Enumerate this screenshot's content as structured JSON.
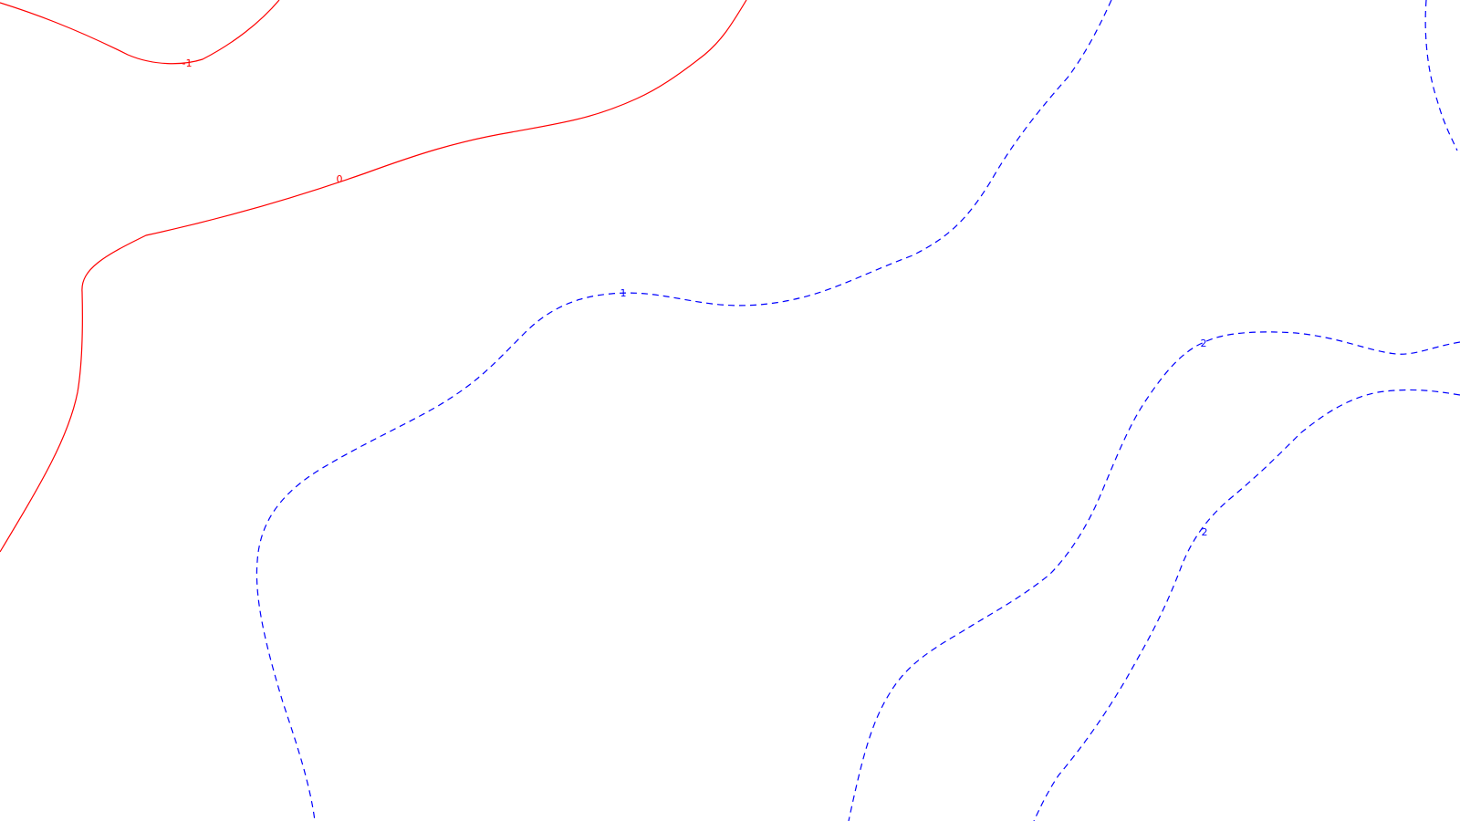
{
  "chart_data": {
    "type": "contour",
    "title": "",
    "xlabel": "",
    "ylabel": "",
    "grid": false,
    "colors": {
      "negative": "#ff0000",
      "zero": "#ff0000",
      "positive": "#0000ff"
    },
    "levels": [
      {
        "level": -1,
        "label": "-1",
        "style": "solid",
        "color": "#ff0000"
      },
      {
        "level": 0,
        "label": "0",
        "style": "solid",
        "color": "#ff0000"
      },
      {
        "level": 1,
        "label": "1",
        "style": "dashed",
        "color": "#0000ff"
      },
      {
        "level": 1,
        "label": "",
        "style": "dashed",
        "color": "#0000ff"
      },
      {
        "level": 2,
        "label": "2",
        "style": "dashed",
        "color": "#0000ff"
      },
      {
        "level": 2,
        "label": "2",
        "style": "dashed",
        "color": "#0000ff"
      }
    ]
  }
}
